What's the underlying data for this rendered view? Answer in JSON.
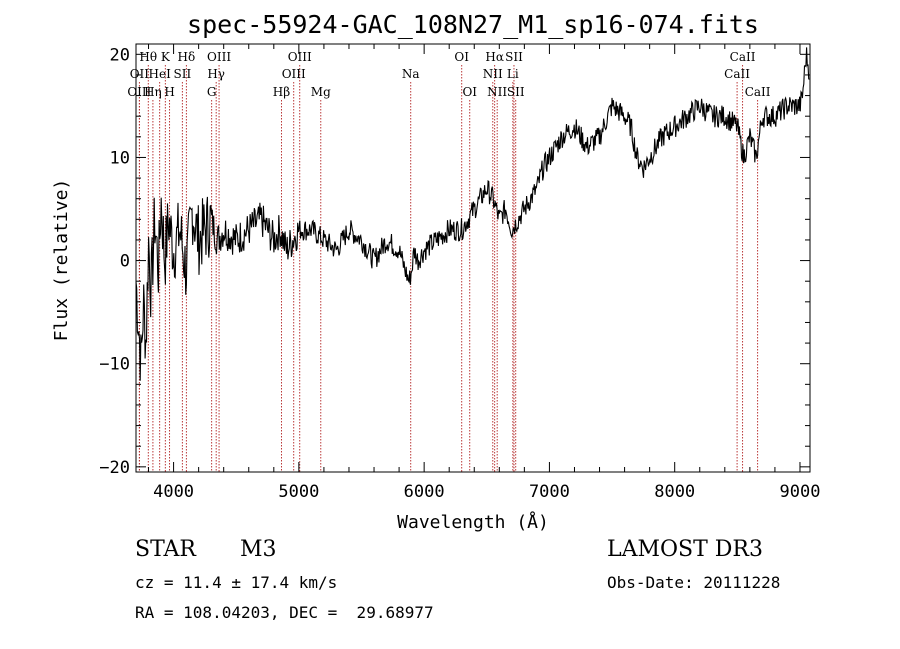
{
  "chart_data": {
    "type": "line",
    "title": "spec-55924-GAC_108N27_M1_sp16-074.fits",
    "xlabel": "Wavelength (Å)",
    "ylabel": "Flux (relative)",
    "xlim": [
      3700,
      9080
    ],
    "ylim": [
      -20.5,
      21
    ],
    "x_ticks": [
      4000,
      5000,
      6000,
      7000,
      8000,
      9000
    ],
    "y_ticks": [
      -20,
      -10,
      0,
      10,
      20
    ],
    "x_tick_labels": [
      "4000",
      "5000",
      "6000",
      "7000",
      "8000",
      "9000"
    ],
    "y_tick_labels": [
      "−20",
      "−10",
      "0",
      "10",
      "20"
    ],
    "series": [
      {
        "name": "flux",
        "color": "#000000",
        "x": [
          3700,
          3720,
          3740,
          3760,
          3780,
          3800,
          3820,
          3850,
          3880,
          3900,
          3930,
          3960,
          4000,
          4050,
          4100,
          4150,
          4200,
          4250,
          4300,
          4350,
          4400,
          4500,
          4600,
          4700,
          4800,
          4850,
          4900,
          4950,
          5000,
          5100,
          5200,
          5300,
          5400,
          5500,
          5600,
          5700,
          5800,
          5850,
          5880,
          5900,
          5920,
          5950,
          6000,
          6100,
          6200,
          6300,
          6350,
          6400,
          6450,
          6500,
          6550,
          6600,
          6650,
          6700,
          6750,
          6800,
          6900,
          6950,
          7000,
          7050,
          7100,
          7200,
          7300,
          7400,
          7500,
          7600,
          7650,
          7700,
          7750,
          7800,
          7850,
          7900,
          8000,
          8100,
          8200,
          8300,
          8400,
          8500,
          8550,
          8600,
          8650,
          8700,
          8800,
          8900,
          9000,
          9020,
          9050,
          9080
        ],
        "y": [
          -2,
          -6,
          -10,
          -4,
          -8,
          2,
          -3,
          4,
          -1,
          6,
          0,
          4,
          1,
          3,
          -1,
          5,
          2,
          3,
          4,
          2,
          3,
          2,
          3,
          4,
          2,
          3,
          1,
          2,
          3,
          3,
          2,
          1,
          3,
          2,
          0,
          2,
          1,
          -1,
          -2,
          -1,
          1,
          0,
          1,
          2,
          3,
          3,
          4,
          5,
          6,
          7,
          6,
          4,
          5,
          3,
          4,
          5,
          7,
          9,
          10,
          11,
          12,
          13,
          11,
          12,
          15,
          14,
          13,
          10,
          9,
          10,
          11,
          12,
          13,
          14,
          15,
          14,
          14,
          13,
          10,
          12,
          10,
          14,
          14,
          15,
          15,
          16,
          20,
          18
        ]
      }
    ],
    "line_labels": [
      {
        "text": "Hθ",
        "x": 3798,
        "row": 1,
        "color": "#b22222"
      },
      {
        "text": "K",
        "x": 3934,
        "row": 1,
        "color": "#b22222"
      },
      {
        "text": "Hδ",
        "x": 4102,
        "row": 1,
        "color": "#b22222"
      },
      {
        "text": "OIII",
        "x": 4363,
        "row": 1,
        "color": "#b22222"
      },
      {
        "text": "OIII",
        "x": 5007,
        "row": 1,
        "color": "#b22222"
      },
      {
        "text": "OI",
        "x": 6300,
        "row": 1,
        "color": "#b22222"
      },
      {
        "text": "Hα",
        "x": 6563,
        "row": 1,
        "color": "#b22222"
      },
      {
        "text": "SII",
        "x": 6717,
        "row": 1,
        "color": "#b22222"
      },
      {
        "text": "CaII",
        "x": 8542,
        "row": 1,
        "color": "#b22222"
      },
      {
        "text": "OII",
        "x": 3727,
        "row": 2,
        "color": "#b22222"
      },
      {
        "text": "HeI",
        "x": 3889,
        "row": 2,
        "color": "#b22222"
      },
      {
        "text": "SII",
        "x": 4070,
        "row": 2,
        "color": "#b22222"
      },
      {
        "text": "Hγ",
        "x": 4340,
        "row": 2,
        "color": "#b22222"
      },
      {
        "text": "OIII",
        "x": 4959,
        "row": 2,
        "color": "#b22222"
      },
      {
        "text": "Na",
        "x": 5893,
        "row": 2,
        "color": "#b22222"
      },
      {
        "text": "NII",
        "x": 6548,
        "row": 2,
        "color": "#b22222"
      },
      {
        "text": "Li",
        "x": 6708,
        "row": 2,
        "color": "#b22222"
      },
      {
        "text": "CaII",
        "x": 8498,
        "row": 2,
        "color": "#b22222"
      },
      {
        "text": "OIII",
        "x": 3727,
        "row": 3,
        "color": "#b22222"
      },
      {
        "text": "Hη",
        "x": 3835,
        "row": 3,
        "color": "#b22222"
      },
      {
        "text": "H",
        "x": 3968,
        "row": 3,
        "color": "#b22222"
      },
      {
        "text": "G",
        "x": 4304,
        "row": 3,
        "color": "#b22222"
      },
      {
        "text": "Hβ",
        "x": 4861,
        "row": 3,
        "color": "#b22222"
      },
      {
        "text": "Mg",
        "x": 5175,
        "row": 3,
        "color": "#b22222"
      },
      {
        "text": "OI",
        "x": 6364,
        "row": 3,
        "color": "#b22222"
      },
      {
        "text": "NII",
        "x": 6583,
        "row": 3,
        "color": "#b22222"
      },
      {
        "text": "SII",
        "x": 6731,
        "row": 3,
        "color": "#b22222"
      },
      {
        "text": "CaII",
        "x": 8662,
        "row": 3,
        "color": "#b22222"
      }
    ]
  },
  "info": {
    "object_class": "STAR",
    "subclass": "M3",
    "survey": "LAMOST DR3",
    "cz": "cz = 11.4 ± 17.4 km/s",
    "obs_date": "Obs-Date: 20111228",
    "coords": "RA = 108.04203, DEC =  29.68977"
  }
}
